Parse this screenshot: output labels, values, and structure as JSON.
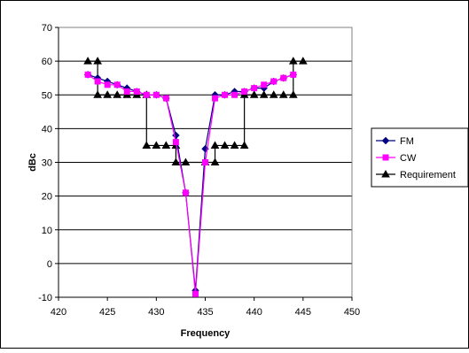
{
  "chart_data": {
    "type": "line",
    "title": "",
    "xlabel": "Frequency",
    "ylabel": "dBc",
    "xlim": [
      420,
      450
    ],
    "ylim": [
      -10,
      70
    ],
    "x_ticks": [
      420,
      425,
      430,
      435,
      440,
      445,
      450
    ],
    "y_ticks": [
      -10,
      0,
      10,
      20,
      30,
      40,
      50,
      60,
      70
    ],
    "grid": "horizontal major gridlines",
    "legend_position": "right",
    "series": [
      {
        "name": "FM",
        "color": "#000080",
        "marker": "diamond",
        "x": [
          423,
          424,
          425,
          426,
          427,
          428,
          429,
          430,
          431,
          432,
          433,
          434,
          435,
          436,
          437,
          438,
          439,
          440,
          441,
          442,
          443,
          444
        ],
        "y": [
          56,
          55,
          54,
          53,
          52,
          51,
          50,
          50,
          49,
          38,
          21,
          -8,
          34,
          50,
          50,
          51,
          51,
          52,
          52,
          54,
          55,
          56
        ]
      },
      {
        "name": "CW",
        "color": "#ff00ff",
        "marker": "square",
        "x": [
          423,
          424,
          425,
          426,
          427,
          428,
          429,
          430,
          431,
          432,
          433,
          434,
          435,
          436,
          437,
          438,
          439,
          440,
          441,
          442,
          443,
          444
        ],
        "y": [
          56,
          54,
          53,
          53,
          51,
          51,
          50,
          50,
          49,
          36,
          21,
          -9,
          30,
          49,
          50,
          50,
          51,
          52,
          53,
          54,
          55,
          56
        ]
      },
      {
        "name": "Requirement",
        "color": "#000000",
        "marker": "triangle",
        "x": [
          423,
          424,
          424,
          425,
          426,
          427,
          428,
          429,
          429,
          430,
          431,
          432,
          432,
          433,
          435,
          436,
          436,
          437,
          438,
          439,
          439,
          440,
          441,
          442,
          443,
          444,
          444,
          445
        ],
        "y": [
          60,
          60,
          50,
          50,
          50,
          50,
          50,
          50,
          35,
          35,
          35,
          35,
          30,
          30,
          30,
          30,
          35,
          35,
          35,
          35,
          50,
          50,
          50,
          50,
          50,
          50,
          60,
          60
        ]
      }
    ]
  }
}
